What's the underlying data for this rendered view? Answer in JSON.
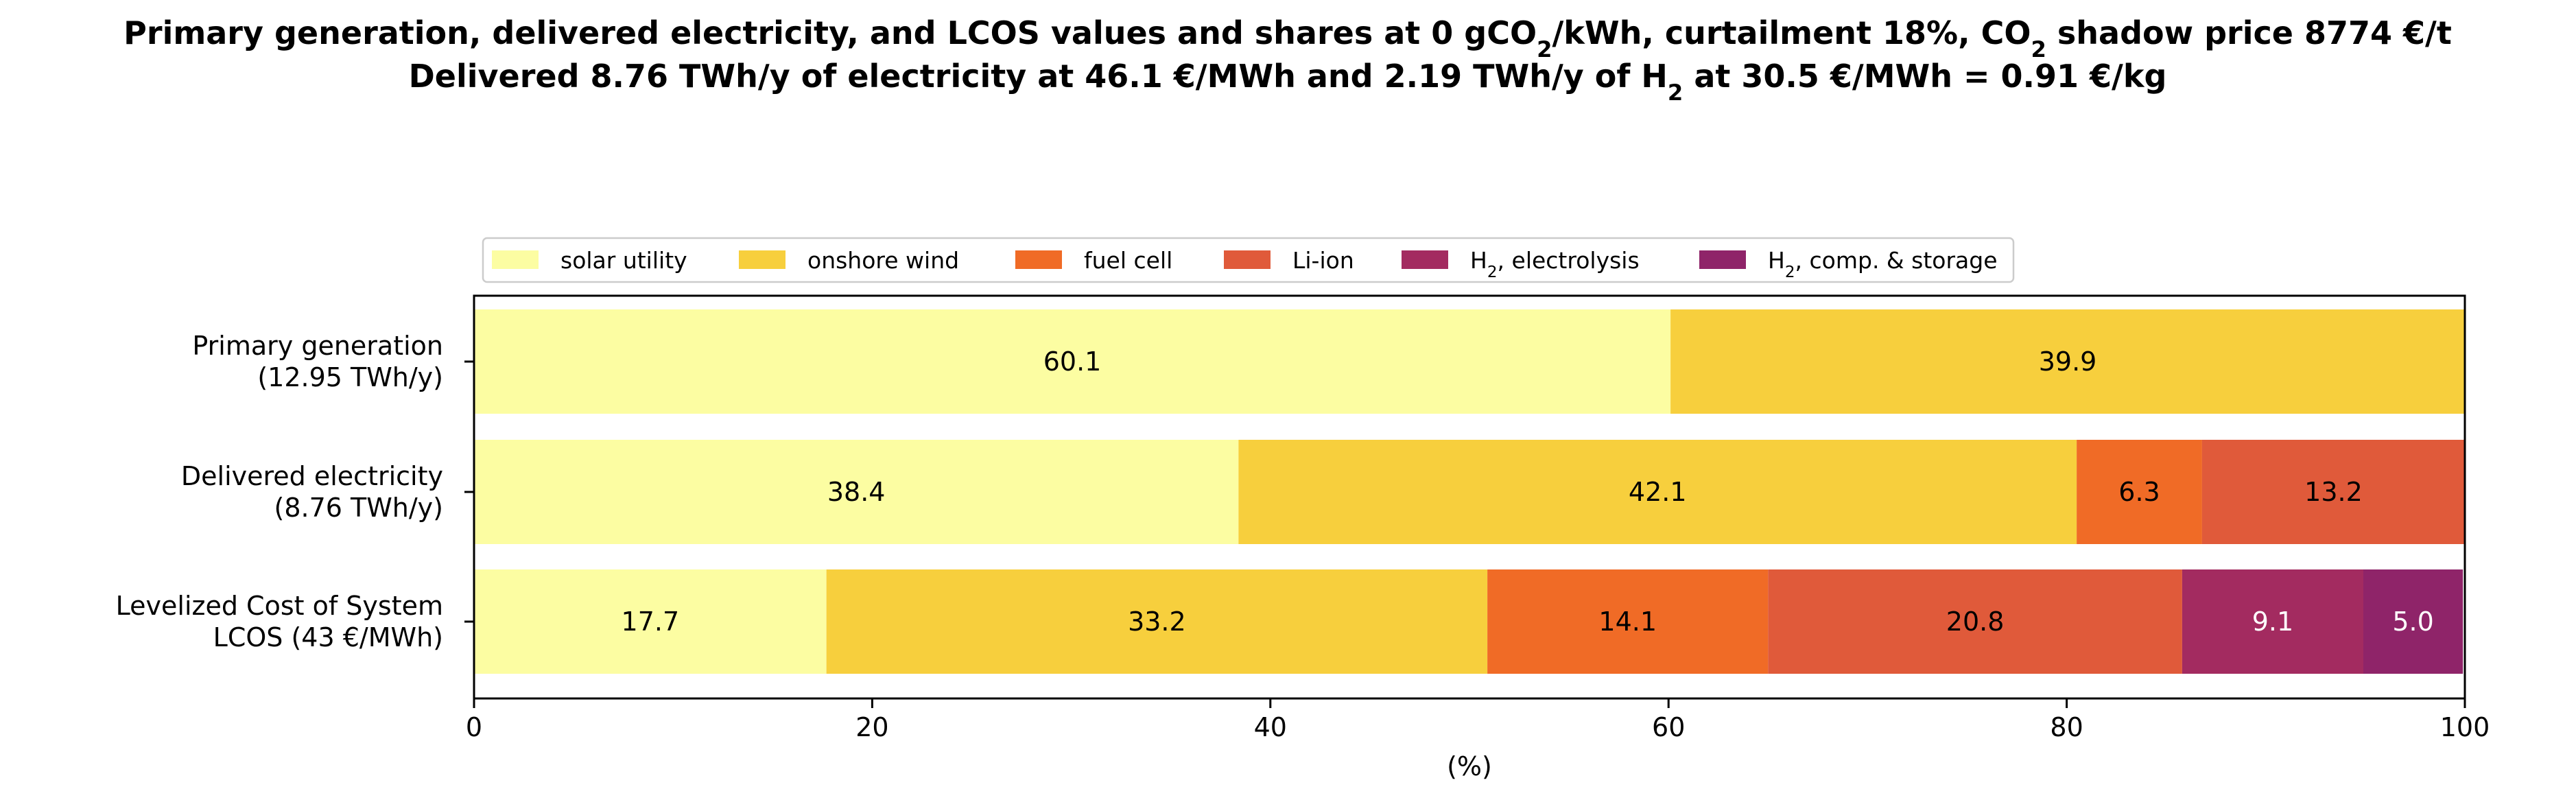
{
  "title": {
    "line1_parts": [
      "Primary generation, delivered electricity, and LCOS values and shares at 0 gCO",
      "2",
      "/kWh, curtailment 18%, CO",
      "2",
      " shadow price 8774 €/t"
    ],
    "line2_parts": [
      "Delivered 8.76 TWh/y of electricity at 46.1 €/MWh and 2.19 TWh/y of H",
      "2",
      " at 30.5 €/MWh = 0.91 €/kg"
    ]
  },
  "colors": {
    "solar utility": "#fcfda2",
    "onshore wind": "#f7cf3d",
    "fuel cell": "#f06b26",
    "Li-ion": "#e05a3a",
    "H2, electrolysis": "#a32b60",
    "H2, comp. & storage": "#8f2469"
  },
  "chart_data": {
    "type": "bar",
    "orientation": "horizontal",
    "stacked": true,
    "xlabel": "(%)",
    "xlim": [
      0,
      100
    ],
    "xticks": [
      "0",
      "20",
      "40",
      "60",
      "80",
      "100"
    ],
    "grid": false,
    "legend_position": "top-left, above axes",
    "categories": [
      [
        "Primary generation",
        "(12.95 TWh/y)"
      ],
      [
        "Delivered electricity",
        "(8.76 TWh/y)"
      ],
      [
        "Levelized Cost of System",
        "LCOS  (43 €/MWh)"
      ]
    ],
    "series": [
      {
        "name": "solar utility",
        "legend_main": "solar utility",
        "legend_sub": "",
        "legend_tail": "",
        "values": [
          60.1,
          38.4,
          17.7
        ],
        "labels": [
          "60.1",
          "38.4",
          "17.7"
        ],
        "label_color": "#000000"
      },
      {
        "name": "onshore wind",
        "legend_main": "onshore wind",
        "legend_sub": "",
        "legend_tail": "",
        "values": [
          39.9,
          42.1,
          33.2
        ],
        "labels": [
          "39.9",
          "42.1",
          "33.2"
        ],
        "label_color": "#000000"
      },
      {
        "name": "fuel cell",
        "legend_main": "fuel cell",
        "legend_sub": "",
        "legend_tail": "",
        "values": [
          0,
          6.3,
          14.1
        ],
        "labels": [
          "",
          "6.3",
          "14.1"
        ],
        "label_color": "#000000"
      },
      {
        "name": "Li-ion",
        "legend_main": "Li-ion",
        "legend_sub": "",
        "legend_tail": "",
        "values": [
          0,
          13.2,
          20.8
        ],
        "labels": [
          "",
          "13.2",
          "20.8"
        ],
        "label_color": "#000000"
      },
      {
        "name": "H2, electrolysis",
        "legend_main": "H",
        "legend_sub": "2",
        "legend_tail": ", electrolysis",
        "values": [
          0,
          0,
          9.1
        ],
        "labels": [
          "",
          "",
          "9.1"
        ],
        "label_color": "#ffffff"
      },
      {
        "name": "H2, comp. & storage",
        "legend_main": "H",
        "legend_sub": "2",
        "legend_tail": ", comp. & storage",
        "values": [
          0,
          0,
          5.0
        ],
        "labels": [
          "",
          "",
          "5.0"
        ],
        "label_color": "#ffffff"
      }
    ]
  }
}
